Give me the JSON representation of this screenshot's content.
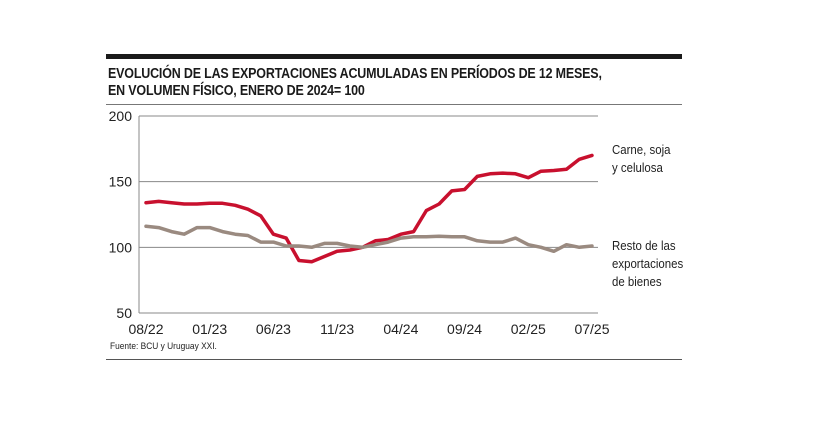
{
  "chart_data": {
    "type": "line",
    "title": "EVOLUCIÓN DE LAS EXPORTACIONES ACUMULADAS EN PERÍODOS DE 12 MESES, EN VOLUMEN FÍSICO, ENERO DE 2024= 100",
    "title_lines": [
      "EVOLUCIÓN DE LAS EXPORTACIONES ACUMULADAS EN PERÍODOS DE 12 MESES,",
      "EN VOLUMEN FÍSICO, ENERO DE 2024= 100"
    ],
    "x": [
      "08/22",
      "09/22",
      "10/22",
      "11/22",
      "12/22",
      "01/23",
      "02/23",
      "03/23",
      "04/23",
      "05/23",
      "06/23",
      "07/23",
      "08/23",
      "09/23",
      "10/23",
      "11/23",
      "12/23",
      "01/24",
      "02/24",
      "03/24",
      "04/24",
      "05/24",
      "06/24",
      "07/24",
      "08/24",
      "09/24",
      "10/24",
      "11/24",
      "12/24",
      "01/25",
      "02/25",
      "03/25",
      "04/25",
      "05/25",
      "06/25",
      "07/25"
    ],
    "x_tick_labels": [
      "08/22",
      "01/23",
      "06/23",
      "11/23",
      "04/24",
      "09/24",
      "02/25",
      "07/25"
    ],
    "y_ticks": [
      50,
      100,
      150,
      200
    ],
    "ylim": [
      50,
      200
    ],
    "grid": "horizontal",
    "legend": "right, labels at line ends",
    "series": [
      {
        "name_lines": [
          "Carne, soja",
          "y celulosa"
        ],
        "color": "#c8102e",
        "values": [
          134,
          135,
          134,
          133,
          133,
          133.5,
          133.5,
          132,
          129,
          124,
          110,
          107,
          90,
          89,
          93,
          97,
          98,
          100,
          105,
          106,
          110,
          112,
          128,
          133,
          143,
          144,
          154,
          156,
          156.5,
          156,
          153,
          158,
          158.5,
          159.5,
          167,
          170
        ]
      },
      {
        "name_lines": [
          "Resto de las",
          "exportaciones",
          "de bienes"
        ],
        "color": "#9a8a80",
        "values": [
          116,
          115,
          112,
          110,
          115,
          115,
          112,
          110,
          109,
          104,
          104,
          101,
          101,
          100,
          103,
          103,
          101,
          100,
          102,
          104,
          107,
          108,
          108,
          108.5,
          108,
          108,
          105,
          104,
          104,
          107,
          102,
          100,
          97,
          102,
          100,
          101
        ]
      }
    ],
    "source": "Fuente: BCU y Uruguay XXI."
  }
}
